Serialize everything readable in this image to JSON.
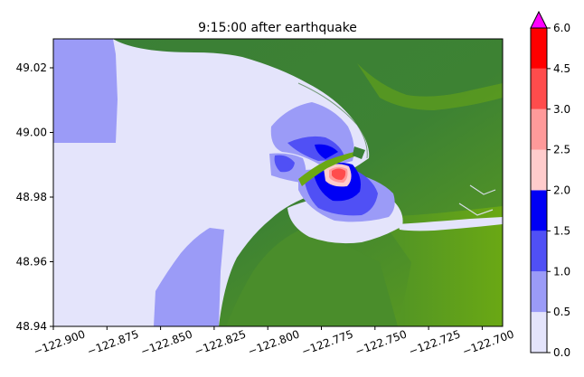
{
  "title": "9:15:00 after earthquake",
  "x_ticks": [
    "−122.900",
    "−122.875",
    "−122.850",
    "−122.825",
    "−122.800",
    "−122.775",
    "−122.750",
    "−122.725",
    "−122.700"
  ],
  "y_ticks": [
    "48.94",
    "48.96",
    "48.98",
    "49.00",
    "49.02"
  ],
  "colorbar_ticks": [
    "0.0",
    "0.5",
    "1.0",
    "1.5",
    "2.0",
    "2.5",
    "3.0",
    "4.5",
    "6.0"
  ],
  "colors": {
    "water": "#e4e4fb",
    "bin_0_5": "#9b9bf7",
    "bin_1_0": "#5050f5",
    "bin_1_5": "#0000f5",
    "bin_2_0": "#ffcccc",
    "bin_2_5": "#ff9a9a",
    "bin_3_0": "#ff4c4c",
    "bin_4_5": "#ff0000",
    "overflow": "#ff00ff",
    "land_dark": "#3a7f36",
    "land_light": "#6aa814"
  },
  "chart_data": {
    "type": "heatmap",
    "title": "9:15:00 after earthquake",
    "xlim": [
      -122.9,
      -122.69
    ],
    "ylim": [
      48.94,
      49.03
    ],
    "colorbar": {
      "levels": [
        0.0,
        0.5,
        1.0,
        1.5,
        2.0,
        2.5,
        3.0,
        4.5,
        6.0
      ],
      "extend": "max"
    }
  }
}
